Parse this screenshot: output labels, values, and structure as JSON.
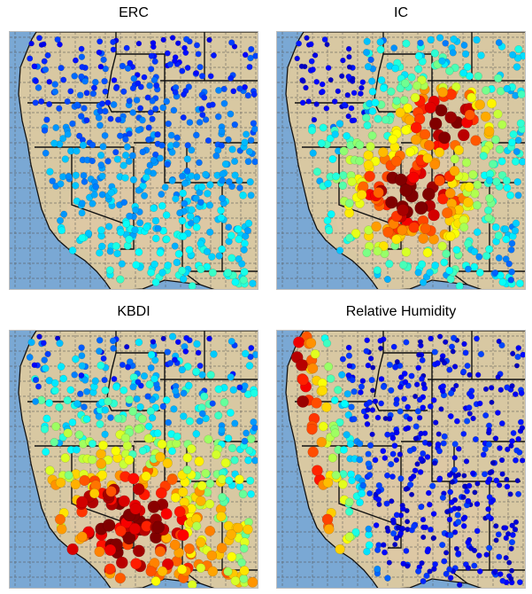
{
  "figure": {
    "panels": [
      {
        "title": "ERC",
        "style": "erc"
      },
      {
        "title": "IC",
        "style": "ic"
      },
      {
        "title": "KBDI",
        "style": "kbdi"
      },
      {
        "title": "Relative Humidity",
        "style": "rh"
      }
    ]
  },
  "colors": {
    "ocean": "#7aa8d4",
    "land": "#d8c8a2",
    "desert": "#e2c9a6",
    "border": "#111111",
    "grid": "#555555",
    "colormap": [
      "#00008f",
      "#0000ff",
      "#0080ff",
      "#00ffff",
      "#80ff80",
      "#ffff00",
      "#ff8000",
      "#ff0000",
      "#800000"
    ]
  }
}
